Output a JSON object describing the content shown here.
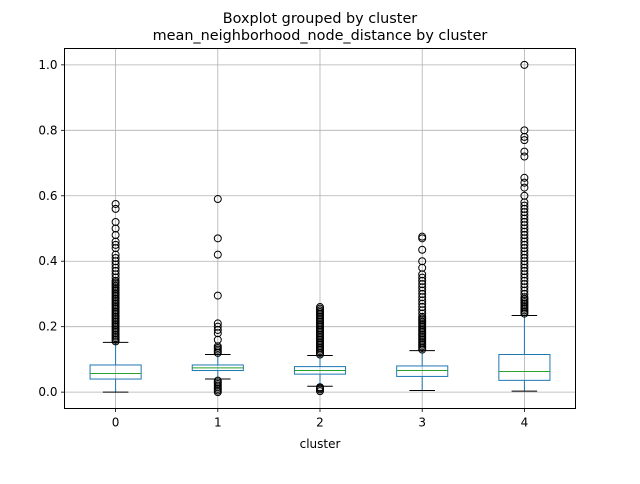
{
  "chart_data": {
    "type": "boxplot",
    "suptitle": "Boxplot grouped by cluster",
    "title": "mean_neighborhood_node_distance by cluster",
    "xlabel": "cluster",
    "ylabel": "",
    "categories": [
      "0",
      "1",
      "2",
      "3",
      "4"
    ],
    "ylim": [
      -0.05,
      1.05
    ],
    "yticks": [
      0.0,
      0.2,
      0.4,
      0.6,
      0.8,
      1.0
    ],
    "ytick_labels": [
      "0.0",
      "0.2",
      "0.4",
      "0.6",
      "0.8",
      "1.0"
    ],
    "grid": true,
    "colors": {
      "box": "#1f77b4",
      "median": "#2ca02c",
      "flier": "#000000",
      "grid": "#b0b0b0"
    },
    "boxes": [
      {
        "category": "0",
        "whisker_low": 0.0,
        "q1": 0.04,
        "median": 0.057,
        "q3": 0.083,
        "whisker_high": 0.152,
        "fliers": [
          0.155,
          0.16,
          0.165,
          0.17,
          0.175,
          0.18,
          0.185,
          0.19,
          0.195,
          0.2,
          0.205,
          0.21,
          0.215,
          0.22,
          0.225,
          0.23,
          0.235,
          0.24,
          0.245,
          0.25,
          0.255,
          0.26,
          0.265,
          0.27,
          0.275,
          0.28,
          0.285,
          0.29,
          0.295,
          0.3,
          0.305,
          0.31,
          0.315,
          0.32,
          0.325,
          0.33,
          0.335,
          0.34,
          0.35,
          0.36,
          0.37,
          0.38,
          0.39,
          0.4,
          0.41,
          0.42,
          0.44,
          0.45,
          0.46,
          0.48,
          0.5,
          0.52,
          0.56,
          0.575
        ]
      },
      {
        "category": "1",
        "whisker_low": 0.04,
        "q1": 0.066,
        "median": 0.074,
        "q3": 0.083,
        "whisker_high": 0.115,
        "fliers": [
          0.0,
          0.005,
          0.01,
          0.015,
          0.02,
          0.025,
          0.03,
          0.035,
          0.12,
          0.125,
          0.13,
          0.135,
          0.14,
          0.16,
          0.18,
          0.19,
          0.2,
          0.21,
          0.295,
          0.42,
          0.47,
          0.59
        ]
      },
      {
        "category": "2",
        "whisker_low": 0.018,
        "q1": 0.055,
        "median": 0.066,
        "q3": 0.078,
        "whisker_high": 0.112,
        "fliers": [
          0.003,
          0.008,
          0.012,
          0.015,
          0.115,
          0.12,
          0.125,
          0.13,
          0.135,
          0.14,
          0.145,
          0.15,
          0.155,
          0.16,
          0.165,
          0.17,
          0.175,
          0.18,
          0.185,
          0.19,
          0.195,
          0.2,
          0.205,
          0.21,
          0.215,
          0.22,
          0.225,
          0.23,
          0.235,
          0.24,
          0.245,
          0.25,
          0.255,
          0.26
        ]
      },
      {
        "category": "3",
        "whisker_low": 0.005,
        "q1": 0.048,
        "median": 0.066,
        "q3": 0.08,
        "whisker_high": 0.127,
        "fliers": [
          0.13,
          0.135,
          0.14,
          0.145,
          0.15,
          0.155,
          0.16,
          0.165,
          0.17,
          0.175,
          0.18,
          0.185,
          0.19,
          0.195,
          0.2,
          0.205,
          0.21,
          0.215,
          0.22,
          0.225,
          0.23,
          0.24,
          0.25,
          0.26,
          0.27,
          0.28,
          0.29,
          0.3,
          0.31,
          0.32,
          0.33,
          0.34,
          0.35,
          0.36,
          0.38,
          0.4,
          0.435,
          0.47,
          0.475
        ]
      },
      {
        "category": "4",
        "whisker_low": 0.003,
        "q1": 0.036,
        "median": 0.063,
        "q3": 0.115,
        "whisker_high": 0.234,
        "fliers": [
          0.24,
          0.245,
          0.25,
          0.255,
          0.26,
          0.265,
          0.27,
          0.275,
          0.28,
          0.285,
          0.29,
          0.3,
          0.31,
          0.32,
          0.33,
          0.34,
          0.35,
          0.36,
          0.37,
          0.38,
          0.39,
          0.4,
          0.41,
          0.42,
          0.43,
          0.44,
          0.45,
          0.46,
          0.47,
          0.48,
          0.49,
          0.5,
          0.51,
          0.52,
          0.53,
          0.54,
          0.55,
          0.56,
          0.57,
          0.58,
          0.6,
          0.625,
          0.64,
          0.655,
          0.72,
          0.735,
          0.77,
          0.78,
          0.8,
          1.0
        ]
      }
    ]
  }
}
